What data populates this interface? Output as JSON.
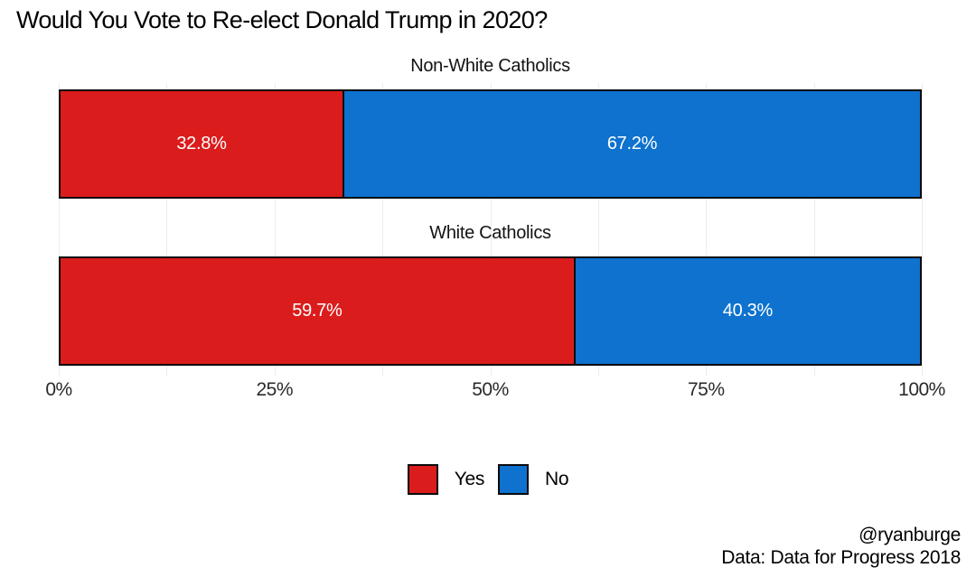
{
  "chart_data": {
    "type": "bar",
    "orientation": "horizontal_stacked",
    "title": "Would You Vote to Re-elect Donald Trump in 2020?",
    "categories": [
      "Non-White Catholics",
      "White Catholics"
    ],
    "series": [
      {
        "name": "Yes",
        "color": "#db1c1c",
        "values": [
          32.8,
          59.7
        ],
        "labels": [
          "32.8%",
          "59.7%"
        ]
      },
      {
        "name": "No",
        "color": "#0e72ce",
        "values": [
          67.2,
          40.3
        ],
        "labels": [
          "67.2%",
          "40.3%"
        ]
      }
    ],
    "xlim": [
      0,
      100
    ],
    "x_tick_labels": [
      "0%",
      "25%",
      "50%",
      "75%",
      "100%"
    ],
    "x_ticks_pct": [
      0,
      25,
      50,
      75,
      100
    ],
    "grid": "faint vertical minor gridlines every 12.5%",
    "gridline_color": "#ececec",
    "bar_outline_color": "#0b0b0b",
    "value_label_color": "#ffffff",
    "legend_position": "bottom-center",
    "annotations": [
      "@ryanburge",
      "Data: Data for Progress 2018"
    ]
  }
}
